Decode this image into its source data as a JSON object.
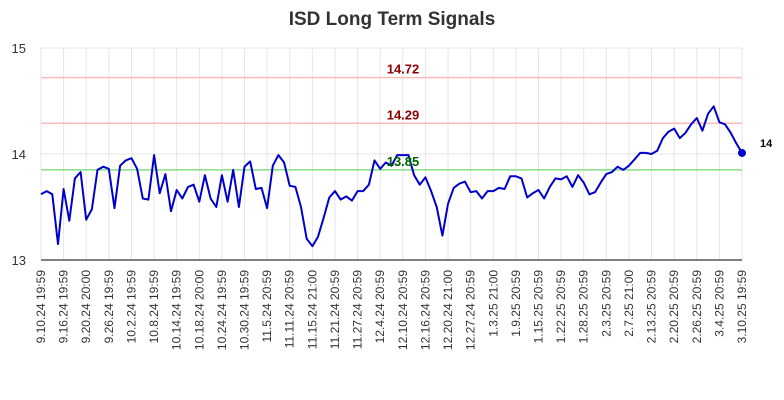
{
  "chart_data": {
    "type": "line",
    "title": "ISD Long Term Signals",
    "xlabel": "",
    "ylabel": "",
    "ylim": [
      13,
      15
    ],
    "yticks": [
      "13",
      "14",
      "15"
    ],
    "grid": "on",
    "x_tick_labels": [
      "9.10.24 19:59",
      "9.16.24 19:59",
      "9.20.24 20:00",
      "9.26.24 19:59",
      "10.2.24 19:59",
      "10.8.24 19:59",
      "10.14.24 19:59",
      "10.18.24 20:00",
      "10.24.24 19:59",
      "10.30.24 19:59",
      "11.5.24 20:59",
      "11.11.24 20:59",
      "11.15.24 21:00",
      "11.21.24 20:59",
      "11.27.24 20:59",
      "12.4.24 20:59",
      "12.10.24 20:59",
      "12.16.24 20:59",
      "12.20.24 21:00",
      "12.27.24 20:59",
      "1.3.25 21:00",
      "1.9.25 20:59",
      "1.15.25 20:59",
      "1.22.25 20:59",
      "1.28.25 20:59",
      "2.3.25 20:59",
      "2.7.25 21:00",
      "2.13.25 20:59",
      "2.20.25 20:59",
      "2.26.25 20:59",
      "3.4.25 20:59",
      "3.10.25 19:59"
    ],
    "levels": [
      {
        "value": 14.72,
        "label": "14.72",
        "line_color": "#ffbbbb",
        "label_color": "#8b0000"
      },
      {
        "value": 14.29,
        "label": "14.29",
        "line_color": "#ffbbbb",
        "label_color": "#8b0000"
      },
      {
        "value": 13.85,
        "label": "13.85",
        "line_color": "#88dd88",
        "label_color": "#006400"
      }
    ],
    "series": [
      {
        "color": "#0000cc",
        "values": [
          13.62,
          13.65,
          13.62,
          13.15,
          13.67,
          13.37,
          13.77,
          13.83,
          13.38,
          13.48,
          13.85,
          13.88,
          13.86,
          13.49,
          13.89,
          13.94,
          13.96,
          13.86,
          13.58,
          13.57,
          13.99,
          13.63,
          13.81,
          13.46,
          13.66,
          13.58,
          13.69,
          13.71,
          13.55,
          13.8,
          13.58,
          13.5,
          13.8,
          13.55,
          13.85,
          13.5,
          13.88,
          13.93,
          13.67,
          13.68,
          13.49,
          13.89,
          13.99,
          13.92,
          13.7,
          13.69,
          13.5,
          13.2,
          13.13,
          13.22,
          13.4,
          13.59,
          13.65,
          13.57,
          13.6,
          13.56,
          13.65,
          13.65,
          13.71,
          13.94,
          13.86,
          13.92,
          13.89,
          13.99,
          13.99,
          13.99,
          13.8,
          13.71,
          13.78,
          13.65,
          13.5,
          13.23,
          13.53,
          13.68,
          13.72,
          13.74,
          13.64,
          13.65,
          13.58,
          13.65,
          13.65,
          13.68,
          13.67,
          13.79,
          13.79,
          13.77,
          13.59,
          13.63,
          13.66,
          13.58,
          13.69,
          13.77,
          13.76,
          13.79,
          13.69,
          13.8,
          13.73,
          13.62,
          13.64,
          13.73,
          13.81,
          13.83,
          13.88,
          13.85,
          13.89,
          13.95,
          14.01,
          14.01,
          14.0,
          14.03,
          14.15,
          14.21,
          14.24,
          14.15,
          14.2,
          14.28,
          14.34,
          14.22,
          14.38,
          14.45,
          14.3,
          14.28,
          14.2,
          14.1,
          14.01
        ]
      }
    ],
    "last_value_label": "14"
  }
}
